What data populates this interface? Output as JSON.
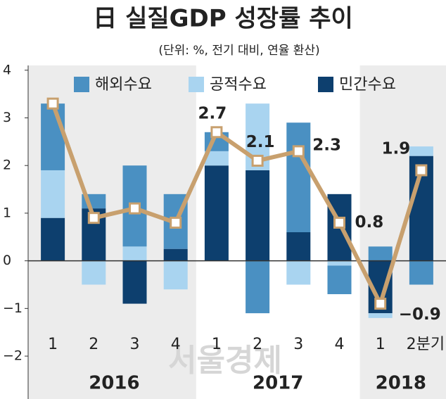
{
  "chart_data": {
    "type": "bar",
    "title": "日 실질GDP 성장률 추이",
    "subtitle": "(단위: %, 전기 대비, 연율 환산)",
    "watermark": "서울경제",
    "categories": [
      "1",
      "2",
      "3",
      "4",
      "1",
      "2",
      "3",
      "4",
      "1",
      "2분기"
    ],
    "groups": [
      "2016",
      "2017",
      "2018"
    ],
    "series": [
      {
        "name": "민간수요",
        "color": "#0d3f6e",
        "values": [
          0.9,
          1.1,
          -0.9,
          0.25,
          2.0,
          1.9,
          0.6,
          1.4,
          -1.1,
          2.2
        ]
      },
      {
        "name": "공적수요",
        "color": "#a9d4f0",
        "values": [
          1.0,
          -0.5,
          0.3,
          -0.6,
          0.3,
          1.4,
          -0.5,
          -0.1,
          -0.1,
          0.2
        ]
      },
      {
        "name": "해외수요",
        "color": "#4a90c2",
        "values": [
          1.4,
          0.3,
          1.7,
          1.15,
          0.4,
          -1.1,
          2.3,
          -0.6,
          0.3,
          -0.5
        ]
      }
    ],
    "line": {
      "color": "#c8a06e",
      "values": [
        3.3,
        0.9,
        1.1,
        0.8,
        2.7,
        2.1,
        2.3,
        0.8,
        -0.9,
        1.9
      ],
      "value_labels": [
        null,
        null,
        null,
        null,
        "2.7",
        "2.1",
        "2.3",
        "0.8",
        "−0.9",
        "1.9"
      ]
    },
    "ylim": [
      -2.9,
      4.1
    ],
    "yticks": [
      {
        "value": -2,
        "label": "−2"
      },
      {
        "value": -1,
        "label": "−1"
      },
      0,
      1,
      2,
      3,
      4
    ]
  }
}
